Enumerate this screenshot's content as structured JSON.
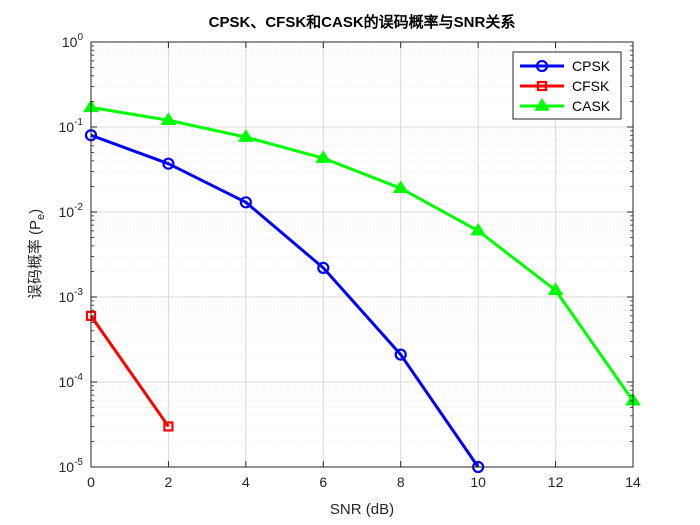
{
  "chart_data": {
    "type": "line",
    "title": "CPSK、CFSK和CASK的误码概率与SNR关系",
    "xlabel": "SNR (dB)",
    "ylabel_main": "误码概率 (P",
    "ylabel_sub": "e",
    "ylabel_close": ")",
    "xlim": [
      0,
      14
    ],
    "ylim": [
      1e-05,
      1
    ],
    "yscale": "log",
    "grid": true,
    "minor_grid": true,
    "legend_position": "top-right",
    "x_ticks": [
      "0",
      "2",
      "4",
      "6",
      "8",
      "10",
      "12",
      "14"
    ],
    "y_ticks": [
      {
        "base": "10",
        "exp": "0"
      },
      {
        "base": "10",
        "exp": "-1"
      },
      {
        "base": "10",
        "exp": "-2"
      },
      {
        "base": "10",
        "exp": "-3"
      },
      {
        "base": "10",
        "exp": "-4"
      },
      {
        "base": "10",
        "exp": "-5"
      }
    ],
    "series": [
      {
        "name": "CPSK",
        "color": "#0000ff",
        "marker": "circle",
        "x": [
          0,
          2,
          4,
          6,
          8,
          10
        ],
        "y": [
          0.08,
          0.037,
          0.013,
          0.0022,
          0.00021,
          1e-05
        ]
      },
      {
        "name": "CFSK",
        "color": "#ff0000",
        "marker": "square",
        "x": [
          0,
          2
        ],
        "y": [
          0.0006,
          3e-05
        ]
      },
      {
        "name": "CASK",
        "color": "#00ff00",
        "marker": "triangle",
        "x": [
          0,
          2,
          4,
          6,
          8,
          10,
          12,
          14
        ],
        "y": [
          0.17,
          0.12,
          0.076,
          0.043,
          0.019,
          0.006,
          0.0012,
          6e-05
        ]
      }
    ]
  }
}
